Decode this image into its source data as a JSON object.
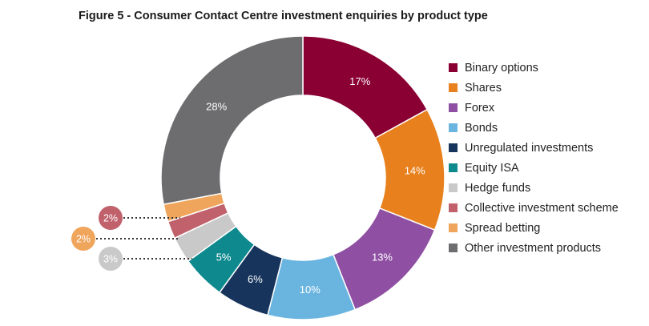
{
  "chart_data": {
    "type": "pie",
    "variant": "donut",
    "title": "Figure 5 - Consumer Contact Centre investment enquiries by product type",
    "categories": [
      "Binary options",
      "Shares",
      "Forex",
      "Bonds",
      "Unregulated investments",
      "Equity ISA",
      "Hedge funds",
      "Collective investment scheme",
      "Spread betting",
      "Other investment products"
    ],
    "values": [
      17,
      14,
      13,
      10,
      6,
      5,
      3,
      2,
      2,
      28
    ],
    "value_labels": [
      "17%",
      "14%",
      "13%",
      "10%",
      "6%",
      "5%",
      "3%",
      "2%",
      "2%",
      "28%"
    ],
    "colors": [
      "#8a0033",
      "#e8811d",
      "#8f4fa3",
      "#6ab5e0",
      "#17345c",
      "#0e8a8f",
      "#c9c9c9",
      "#c0616c",
      "#f0a55d",
      "#6d6d6f"
    ],
    "callouts": [
      7,
      8,
      6
    ],
    "legend_position": "right"
  }
}
